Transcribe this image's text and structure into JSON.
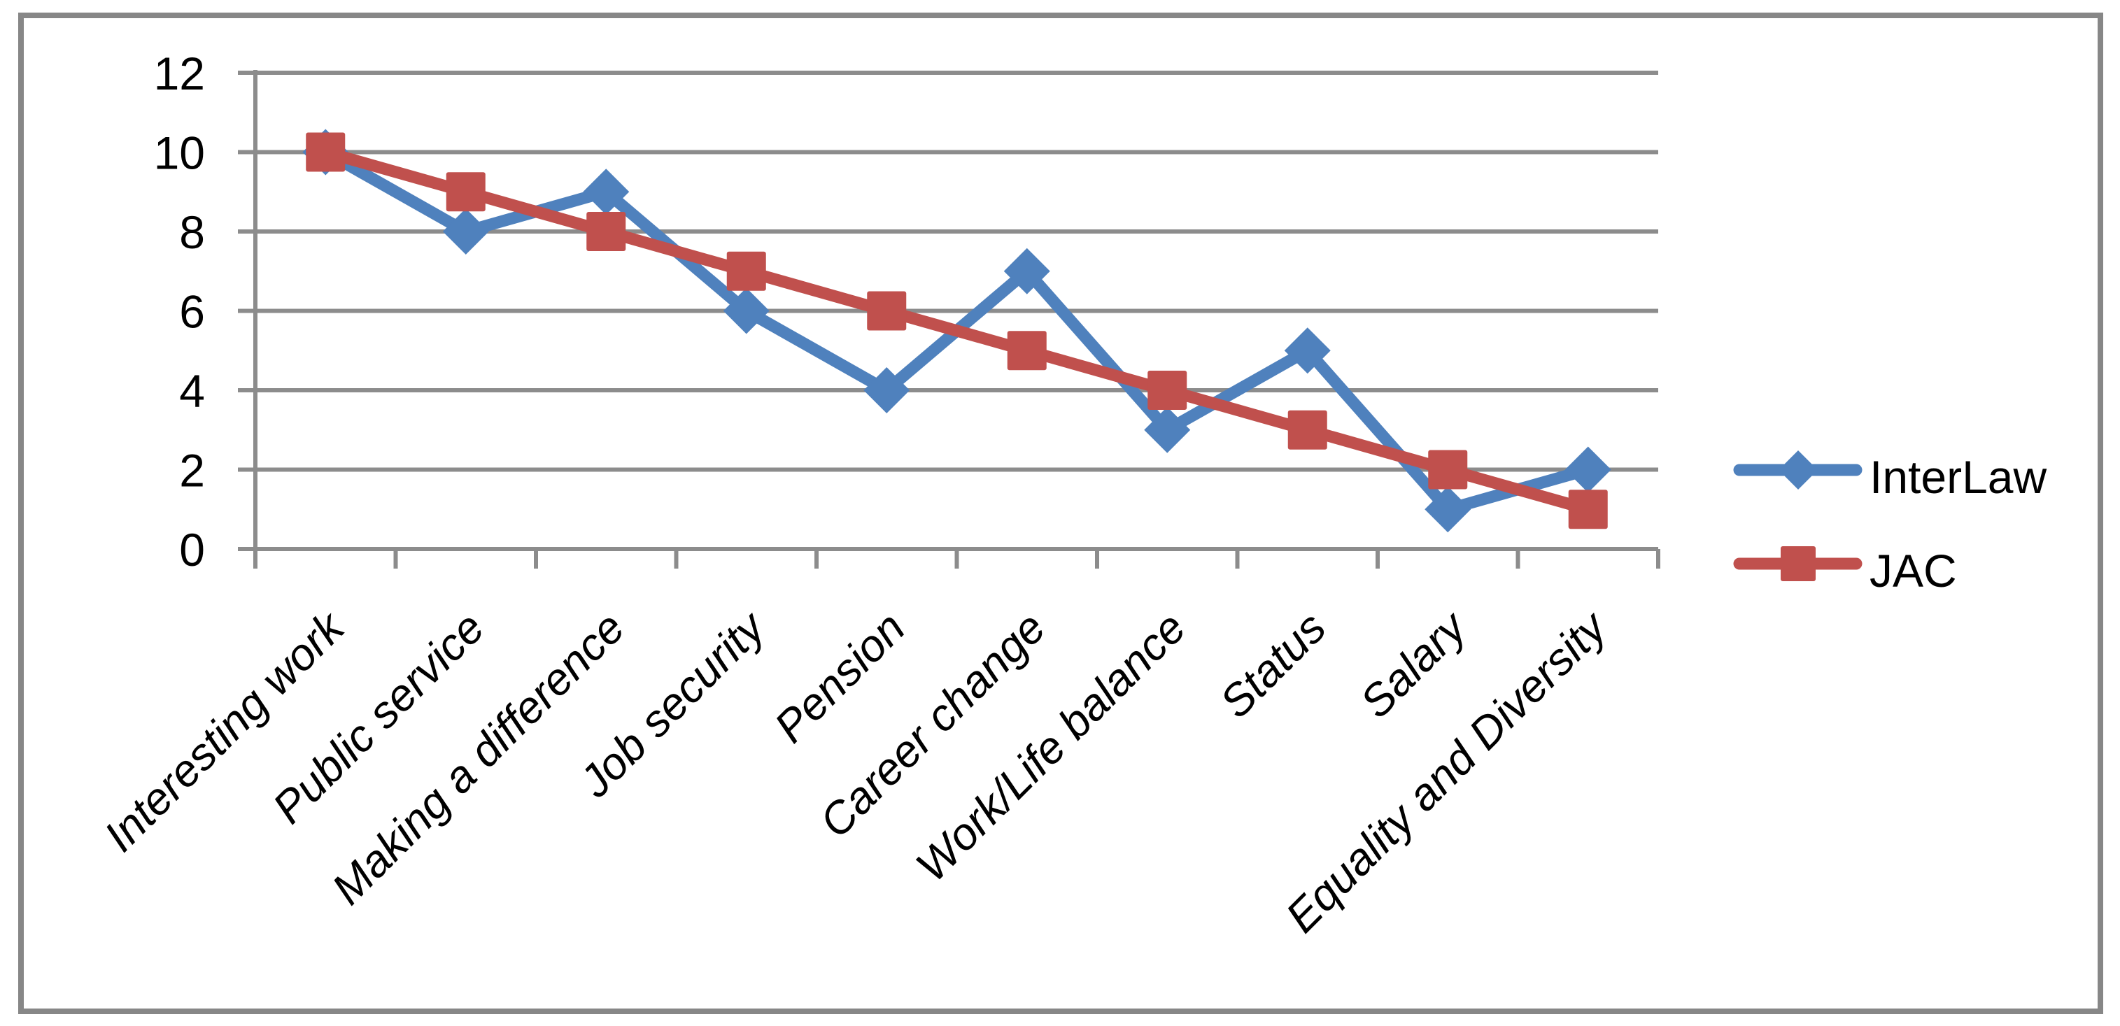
{
  "chart_data": {
    "type": "line",
    "title": "",
    "xlabel": "",
    "ylabel": "",
    "categories": [
      "Interesting work",
      "Public service",
      "Making a difference",
      "Job security",
      "Pension",
      "Career change",
      "Work/Life balance",
      "Status",
      "Salary",
      "Equality and Diversity"
    ],
    "series": [
      {
        "name": "InterLaw",
        "marker": "diamond",
        "color": "#4F81BD",
        "values": [
          10,
          8,
          9,
          6,
          4,
          7,
          3,
          5,
          1,
          2
        ]
      },
      {
        "name": "JAC",
        "marker": "square",
        "color": "#C0504D",
        "values": [
          10,
          9,
          8,
          7,
          6,
          5,
          4,
          3,
          2,
          1
        ]
      }
    ],
    "y_axis": {
      "min": 0,
      "max": 12,
      "tick_step": 2,
      "tick_labels": [
        "0",
        "2",
        "4",
        "6",
        "8",
        "10",
        "12"
      ]
    },
    "x_axis": {
      "label_rotation_deg": 45,
      "label_style": "italic"
    },
    "grid": true,
    "legend": {
      "position": "right",
      "entries": [
        "InterLaw",
        "JAC"
      ]
    }
  },
  "colors": {
    "background": "#FFFFFF",
    "plot_background": "#FFFFFF",
    "gridline": "#8C8C8C",
    "axis": "#8C8C8C",
    "tick": "#8C8C8C",
    "chart_border": "#878787",
    "text": "#000000",
    "series_interlaw": "#4F81BD",
    "series_jac": "#C0504D"
  }
}
